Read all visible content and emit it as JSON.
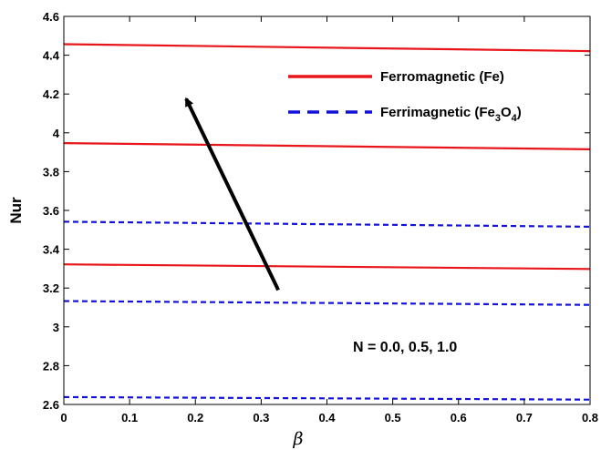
{
  "chart_data": {
    "type": "line",
    "title": "",
    "xlabel": "β",
    "ylabel": "Nur",
    "xlim": [
      0,
      0.8
    ],
    "ylim": [
      2.6,
      4.6
    ],
    "xticks": [
      0,
      0.1,
      0.2,
      0.3,
      0.4,
      0.5,
      0.6,
      0.7,
      0.8
    ],
    "xtick_labels": [
      "0",
      "0.1",
      "0.2",
      "0.3",
      "0.4",
      "0.5",
      "0.6",
      "0.7",
      "0.8"
    ],
    "yticks": [
      2.6,
      2.8,
      3.0,
      3.2,
      3.4,
      3.6,
      3.8,
      4.0,
      4.2,
      4.4,
      4.6
    ],
    "ytick_labels": [
      "2.6",
      "2.8",
      "3",
      "3.2",
      "3.4",
      "3.6",
      "3.8",
      "4",
      "4.2",
      "4.4",
      "4.6"
    ],
    "grid": false,
    "legend_position": "top-right",
    "legend": [
      {
        "main": "Ferromagnetic (Fe)",
        "color": "#e8161b",
        "dash": "solid"
      },
      {
        "parts": [
          "Ferrimagnetic (Fe",
          "3",
          "O",
          "4",
          ")"
        ],
        "color": "#1212d8",
        "dash": "dashed"
      }
    ],
    "annotation": "N = 0.0, 0.5, 1.0",
    "arrow": {
      "from": [
        0.326,
        3.19
      ],
      "to": [
        0.186,
        4.175
      ],
      "color": "#000000"
    },
    "series": [
      {
        "group": "Ferromagnetic (Fe)",
        "color": "#e8161b",
        "dash": "solid",
        "x": [
          0,
          0.8
        ],
        "y": [
          3.322,
          3.298
        ]
      },
      {
        "group": "Ferromagnetic (Fe)",
        "color": "#e8161b",
        "dash": "solid",
        "x": [
          0,
          0.8
        ],
        "y": [
          3.947,
          3.915
        ]
      },
      {
        "group": "Ferromagnetic (Fe)",
        "color": "#e8161b",
        "dash": "solid",
        "x": [
          0,
          0.8
        ],
        "y": [
          4.457,
          4.421
        ]
      },
      {
        "group": "Ferrimagnetic (Fe3O4)",
        "color": "#1212d8",
        "dash": "dashed",
        "x": [
          0,
          0.8
        ],
        "y": [
          2.638,
          2.625
        ]
      },
      {
        "group": "Ferrimagnetic (Fe3O4)",
        "color": "#1212d8",
        "dash": "dashed",
        "x": [
          0,
          0.8
        ],
        "y": [
          3.133,
          3.113
        ]
      },
      {
        "group": "Ferrimagnetic (Fe3O4)",
        "color": "#1212d8",
        "dash": "dashed",
        "x": [
          0,
          0.8
        ],
        "y": [
          3.542,
          3.516
        ]
      }
    ]
  }
}
